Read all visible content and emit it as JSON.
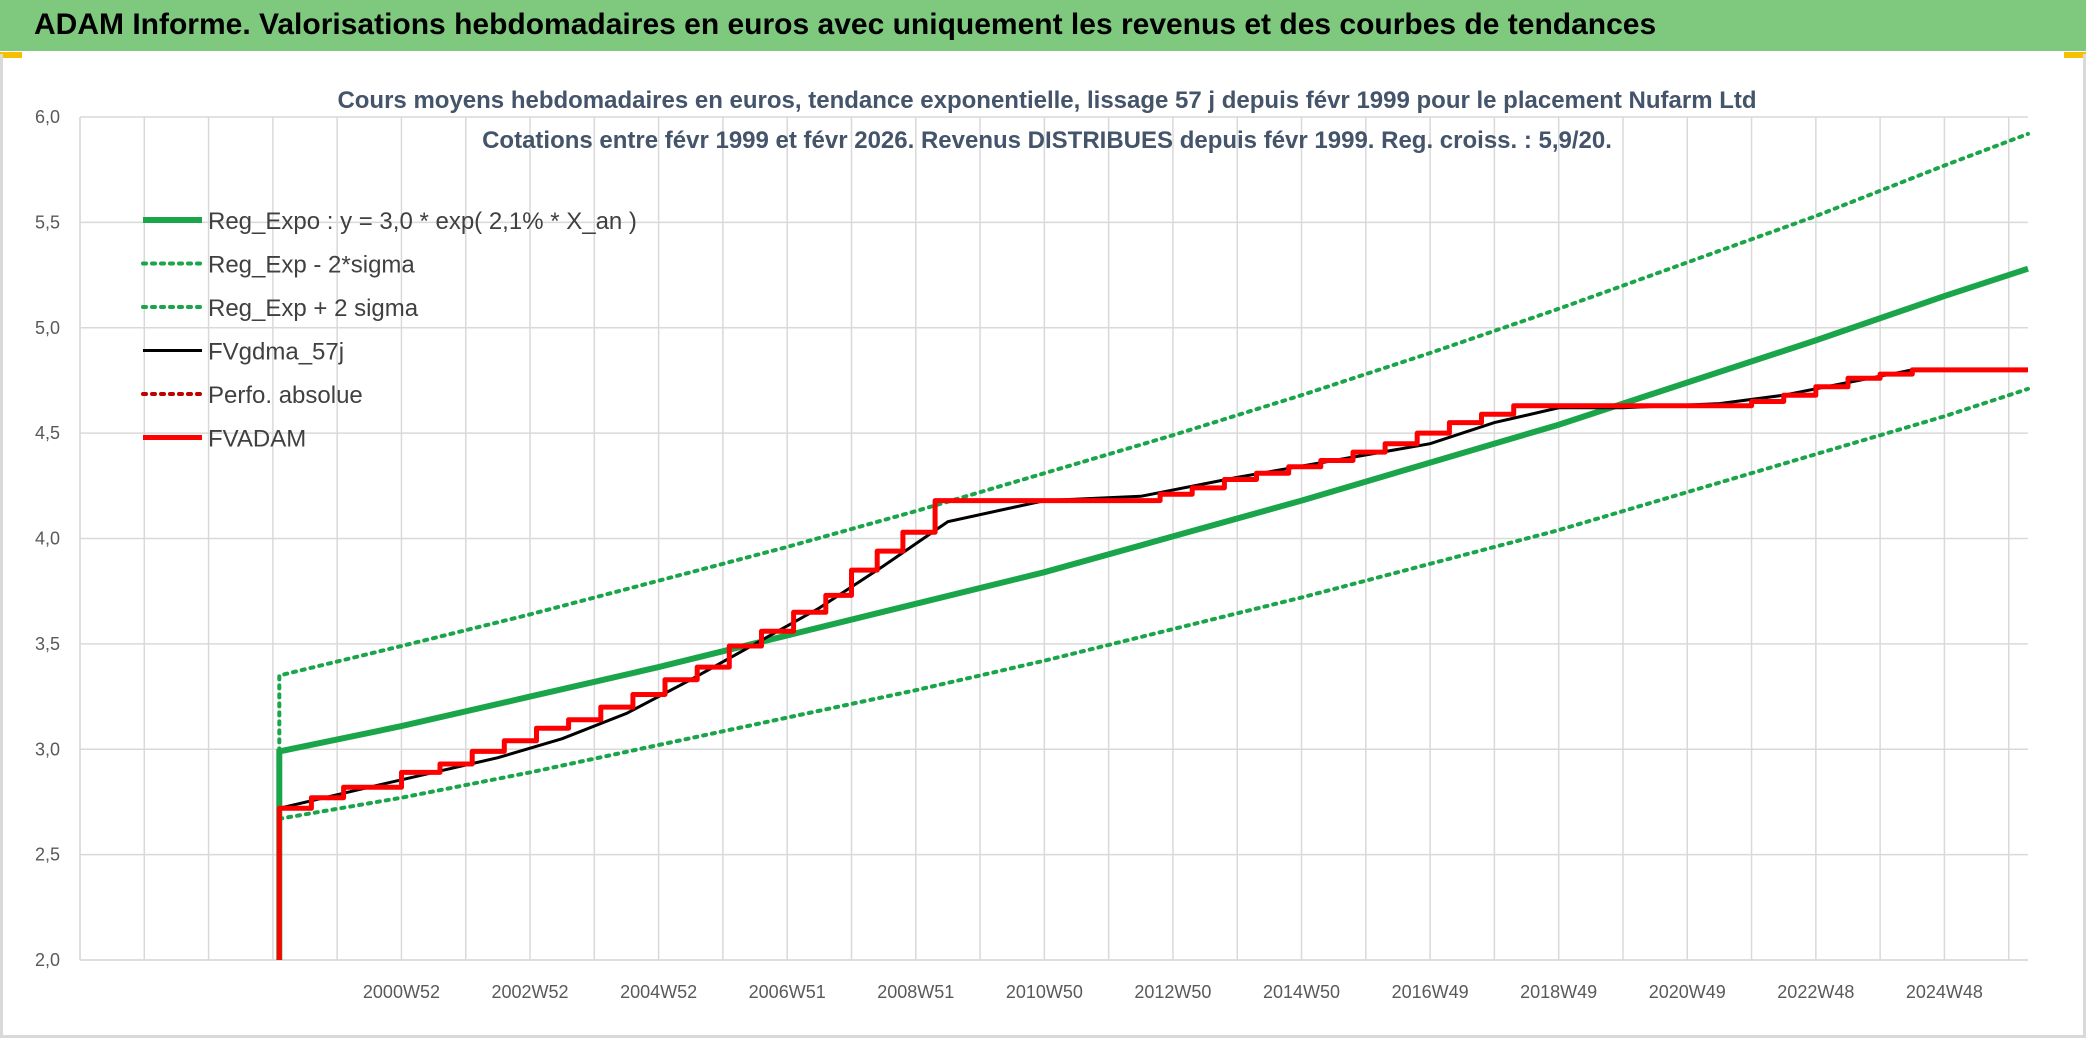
{
  "header": {
    "title": "ADAM Informe. Valorisations hebdomadaires en euros avec uniquement les revenus et des courbes de tendances"
  },
  "colors": {
    "banner": "#7fc97f",
    "green": "#1aa54a",
    "black": "#000000",
    "red": "#ff0000",
    "grid": "#d9d9d9",
    "title": "#44546a"
  },
  "chart_data": {
    "type": "line",
    "title": "Cours moyens hebdomadaires en euros, tendance exponentielle, lissage 57 j depuis févr 1999 pour le placement Nufarm Ltd",
    "subtitle": "Cotations entre févr 1999 et févr 2026. Revenus DISTRIBUES depuis févr 1999. Reg. croiss. : 5,9/20.",
    "xlabel": "",
    "ylabel": "",
    "xlim": [
      1996.0,
      2026.3
    ],
    "ylim": [
      2.0,
      6.0
    ],
    "y_ticks": [
      "2,0",
      "2,5",
      "3,0",
      "3,5",
      "4,0",
      "4,5",
      "5,0",
      "5,5",
      "6,0"
    ],
    "x_ticks": [
      {
        "label": "2000W52",
        "x": 2001.0
      },
      {
        "label": "2002W52",
        "x": 2003.0
      },
      {
        "label": "2004W52",
        "x": 2005.0
      },
      {
        "label": "2006W51",
        "x": 2007.0
      },
      {
        "label": "2008W51",
        "x": 2009.0
      },
      {
        "label": "2010W50",
        "x": 2011.0
      },
      {
        "label": "2012W50",
        "x": 2013.0
      },
      {
        "label": "2014W50",
        "x": 2015.0
      },
      {
        "label": "2016W49",
        "x": 2017.0
      },
      {
        "label": "2018W49",
        "x": 2019.0
      },
      {
        "label": "2020W49",
        "x": 2021.0
      },
      {
        "label": "2022W48",
        "x": 2023.0
      },
      {
        "label": "2024W48",
        "x": 2025.0
      }
    ],
    "grid": true,
    "legend_position": "top-left",
    "series": [
      {
        "name": "Reg_Expo : y = 3,0 * exp( 2,1% *  X_an )",
        "style": "solid-thick",
        "color": "#1aa54a",
        "x": [
          1999.1,
          1999.1,
          2001.0,
          2003.0,
          2005.0,
          2007.0,
          2009.0,
          2011.0,
          2013.0,
          2015.0,
          2017.0,
          2019.0,
          2021.0,
          2023.0,
          2025.0,
          2026.3
        ],
        "y": [
          2.0,
          2.99,
          3.11,
          3.25,
          3.39,
          3.54,
          3.69,
          3.84,
          4.01,
          4.18,
          4.36,
          4.54,
          4.74,
          4.94,
          5.15,
          5.28
        ]
      },
      {
        "name": "Reg_Exp - 2*sigma",
        "style": "dotted",
        "color": "#1aa54a",
        "x": [
          1999.1,
          2001.0,
          2003.0,
          2005.0,
          2007.0,
          2009.0,
          2011.0,
          2013.0,
          2015.0,
          2017.0,
          2019.0,
          2021.0,
          2023.0,
          2025.0,
          2026.3
        ],
        "y": [
          2.67,
          2.77,
          2.89,
          3.02,
          3.15,
          3.28,
          3.42,
          3.57,
          3.72,
          3.88,
          4.04,
          4.22,
          4.4,
          4.58,
          4.71
        ]
      },
      {
        "name": "Reg_Exp + 2 sigma",
        "style": "dotted",
        "color": "#1aa54a",
        "x": [
          1999.1,
          1999.1,
          2001.0,
          2003.0,
          2005.0,
          2007.0,
          2009.0,
          2011.0,
          2013.0,
          2015.0,
          2017.0,
          2019.0,
          2021.0,
          2023.0,
          2025.0,
          2026.3
        ],
        "y": [
          2.99,
          3.35,
          3.49,
          3.64,
          3.8,
          3.96,
          4.13,
          4.31,
          4.49,
          4.68,
          4.88,
          5.09,
          5.31,
          5.53,
          5.77,
          5.92
        ]
      },
      {
        "name": "FVgdma_57j",
        "style": "solid",
        "color": "#000000",
        "x": [
          1999.1,
          1999.1,
          2000.5,
          2001.5,
          2002.5,
          2003.5,
          2004.5,
          2005.5,
          2006.5,
          2007.5,
          2008.5,
          2009.5,
          2011.0,
          2012.5,
          2014.0,
          2015.5,
          2017.0,
          2018.0,
          2019.0,
          2020.0,
          2021.5,
          2022.5,
          2023.5,
          2024.5,
          2026.3
        ],
        "y": [
          2.0,
          2.72,
          2.82,
          2.89,
          2.96,
          3.05,
          3.17,
          3.33,
          3.5,
          3.67,
          3.87,
          4.08,
          4.18,
          4.2,
          4.29,
          4.37,
          4.45,
          4.55,
          4.62,
          4.62,
          4.64,
          4.68,
          4.74,
          4.8,
          4.8
        ]
      },
      {
        "name": "Perfo. absolue",
        "style": "dotted",
        "color": "#c00000",
        "x": [],
        "y": []
      },
      {
        "name": "FVADAM",
        "style": "step-thick",
        "color": "#ff0000",
        "x": [
          1999.1,
          1999.1,
          1999.6,
          2000.1,
          2001.0,
          2001.6,
          2002.1,
          2002.6,
          2003.1,
          2003.6,
          2004.1,
          2004.6,
          2005.1,
          2005.6,
          2006.1,
          2006.6,
          2007.1,
          2007.6,
          2008.0,
          2008.4,
          2008.8,
          2009.3,
          2012.2,
          2012.8,
          2013.3,
          2013.8,
          2014.3,
          2014.8,
          2015.3,
          2015.8,
          2016.3,
          2016.8,
          2017.3,
          2017.8,
          2018.3,
          2018.9,
          2022.0,
          2022.5,
          2023.0,
          2023.5,
          2024.0,
          2024.5,
          2026.3
        ],
        "y": [
          2.0,
          2.72,
          2.77,
          2.82,
          2.89,
          2.93,
          2.99,
          3.04,
          3.1,
          3.14,
          3.2,
          3.26,
          3.33,
          3.39,
          3.49,
          3.56,
          3.65,
          3.73,
          3.85,
          3.94,
          4.03,
          4.18,
          4.18,
          4.21,
          4.24,
          4.28,
          4.31,
          4.34,
          4.37,
          4.41,
          4.45,
          4.5,
          4.55,
          4.59,
          4.63,
          4.63,
          4.65,
          4.68,
          4.72,
          4.76,
          4.78,
          4.8,
          4.8
        ]
      }
    ]
  }
}
